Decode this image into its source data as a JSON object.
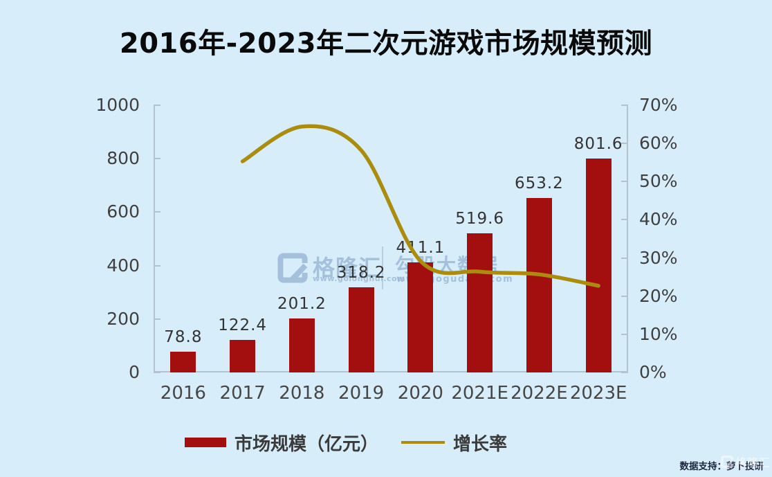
{
  "title": "2016年-2023年二次元游戏市场规模预测",
  "chart_data": {
    "type": "combo-bar-line",
    "categories": [
      "2016",
      "2017",
      "2018",
      "2019",
      "2020",
      "2021E",
      "2022E",
      "2023E"
    ],
    "series": [
      {
        "name": "市场规模（亿元）",
        "type": "bar",
        "axis": "left",
        "color": "#a30f0f",
        "values": [
          78.8,
          122.4,
          201.2,
          318.2,
          411.1,
          519.6,
          653.2,
          801.6
        ],
        "data_labels": [
          "78.8",
          "122.4",
          "201.2",
          "318.2",
          "411.1",
          "519.6",
          "653.2",
          "801.6"
        ]
      },
      {
        "name": "增长率",
        "type": "line",
        "axis": "right",
        "color": "#ab8c0c",
        "values_percent": [
          null,
          55.3,
          64.4,
          58.2,
          29.2,
          26.4,
          25.7,
          22.7
        ]
      }
    ],
    "left_axis": {
      "min": 0,
      "max": 1000,
      "step": 200,
      "ticks": [
        "1000",
        "800",
        "600",
        "400",
        "200",
        "0"
      ]
    },
    "right_axis": {
      "min": 0,
      "max": 70,
      "step": 10,
      "ticks": [
        "70%",
        "60%",
        "50%",
        "40%",
        "30%",
        "20%",
        "10%",
        "0%"
      ]
    },
    "grid": false,
    "legend_position": "bottom"
  },
  "watermark": {
    "brand": "格隆汇",
    "brand_url": "www.golonghui.com",
    "partner": "勾股大数据",
    "partner_url": "www.gogudata.com"
  },
  "footer": {
    "credit": "数据支持：萝卜投研",
    "corner_brand": "格隆汇"
  },
  "colors": {
    "background": "#d7edf9",
    "bar": "#a30f0f",
    "line": "#ab8c0c",
    "axis": "#b3c2cd",
    "axis_text": "#3f3f3f",
    "title_text": "#0a0a0a",
    "watermark": "#9db9d6",
    "credit_text": "#1c2740"
  }
}
